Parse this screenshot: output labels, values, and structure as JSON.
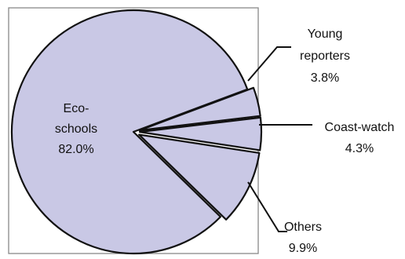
{
  "chart_data": {
    "type": "pie",
    "title": "",
    "slice_order": "clockwise from the top of the Young reporters wedge",
    "slices": [
      {
        "label_lines": [
          "Young",
          "reporters"
        ],
        "value_text": "3.8%",
        "value": 3.8
      },
      {
        "label_lines": [
          "Coast-watch"
        ],
        "value_text": "4.3%",
        "value": 4.3
      },
      {
        "label_lines": [
          "Others"
        ],
        "value_text": "9.9%",
        "value": 9.9
      },
      {
        "label_lines": [
          "Eco-",
          "schools"
        ],
        "value_text": "82.0%",
        "value": 82.0
      }
    ],
    "exploded_slices": [
      "Young reporters",
      "Coast-watch",
      "Others"
    ],
    "colors": {
      "slice_fill": "#c9c8e5",
      "slice_stroke": "#111111",
      "frame": "#888888"
    }
  }
}
